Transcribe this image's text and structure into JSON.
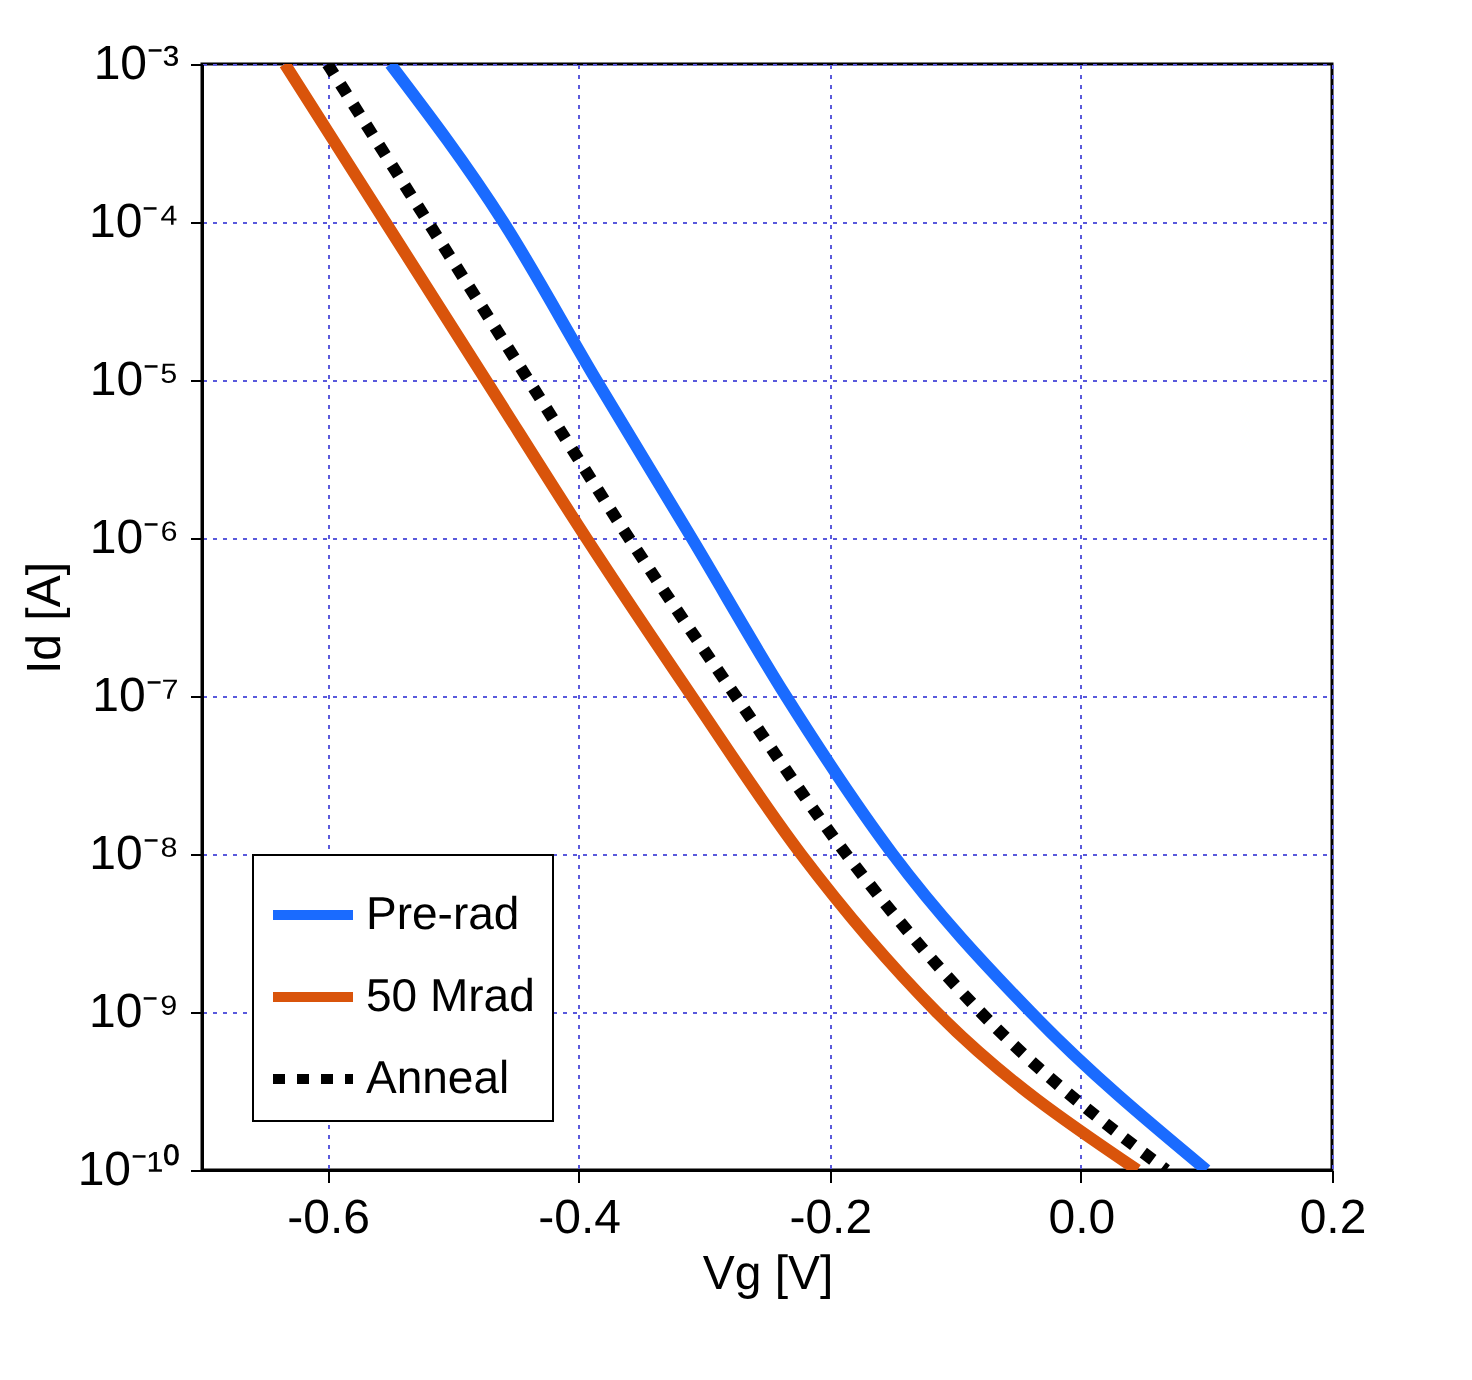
{
  "chart_data": {
    "type": "line",
    "xlabel": "Vg [V]",
    "ylabel": "Id [A]",
    "log": "y",
    "grid": true,
    "legend": "bottom left",
    "xlim": [
      -0.7,
      0.2
    ],
    "ylim": [
      1e-10,
      0.001
    ],
    "xticks": [
      -0.6,
      -0.4,
      -0.2,
      {
        "value": 0,
        "label": "0.0"
      },
      0.2
    ],
    "yticks": [
      {
        "value": 1e-10,
        "label": "10⁻¹⁰"
      },
      {
        "value": 1e-09,
        "label": "10⁻⁹"
      },
      {
        "value": 1e-08,
        "label": "10⁻⁸"
      },
      {
        "value": 1e-07,
        "label": "10⁻⁷"
      },
      {
        "value": 1e-06,
        "label": "10⁻⁶"
      },
      {
        "value": 1e-05,
        "label": "10⁻⁵"
      },
      {
        "value": 0.0001,
        "label": "10⁻⁴"
      },
      {
        "value": 0.001,
        "label": "10⁻³"
      }
    ],
    "series": [
      {
        "name": "Pre-rad",
        "color": "#1a6bff",
        "line_style": "solid",
        "x": [
          -0.55,
          -0.46,
          -0.386,
          -0.31,
          -0.235,
          -0.15,
          -0.04,
          0.1
        ],
        "values": [
          0.001,
          0.0001,
          1e-05,
          1e-06,
          1e-07,
          1e-08,
          1e-09,
          1e-10
        ]
      },
      {
        "name": "50 Mrad",
        "color": "#d9540b",
        "line_style": "solid",
        "x": [
          -0.634,
          -0.554,
          -0.474,
          -0.394,
          -0.31,
          -0.223,
          -0.115,
          0.045
        ],
        "values": [
          0.001,
          0.0001,
          1e-05,
          1e-06,
          1e-07,
          1e-08,
          1e-09,
          1e-10
        ]
      },
      {
        "name": "Anneal",
        "color": "#000000",
        "line_style": "dotted",
        "x": [
          -0.6,
          -0.52,
          -0.44,
          -0.36,
          -0.275,
          -0.187,
          -0.08,
          0.068
        ],
        "values": [
          0.001,
          0.0001,
          1e-05,
          1e-06,
          1e-07,
          1e-08,
          1e-09,
          1e-10
        ]
      }
    ]
  }
}
